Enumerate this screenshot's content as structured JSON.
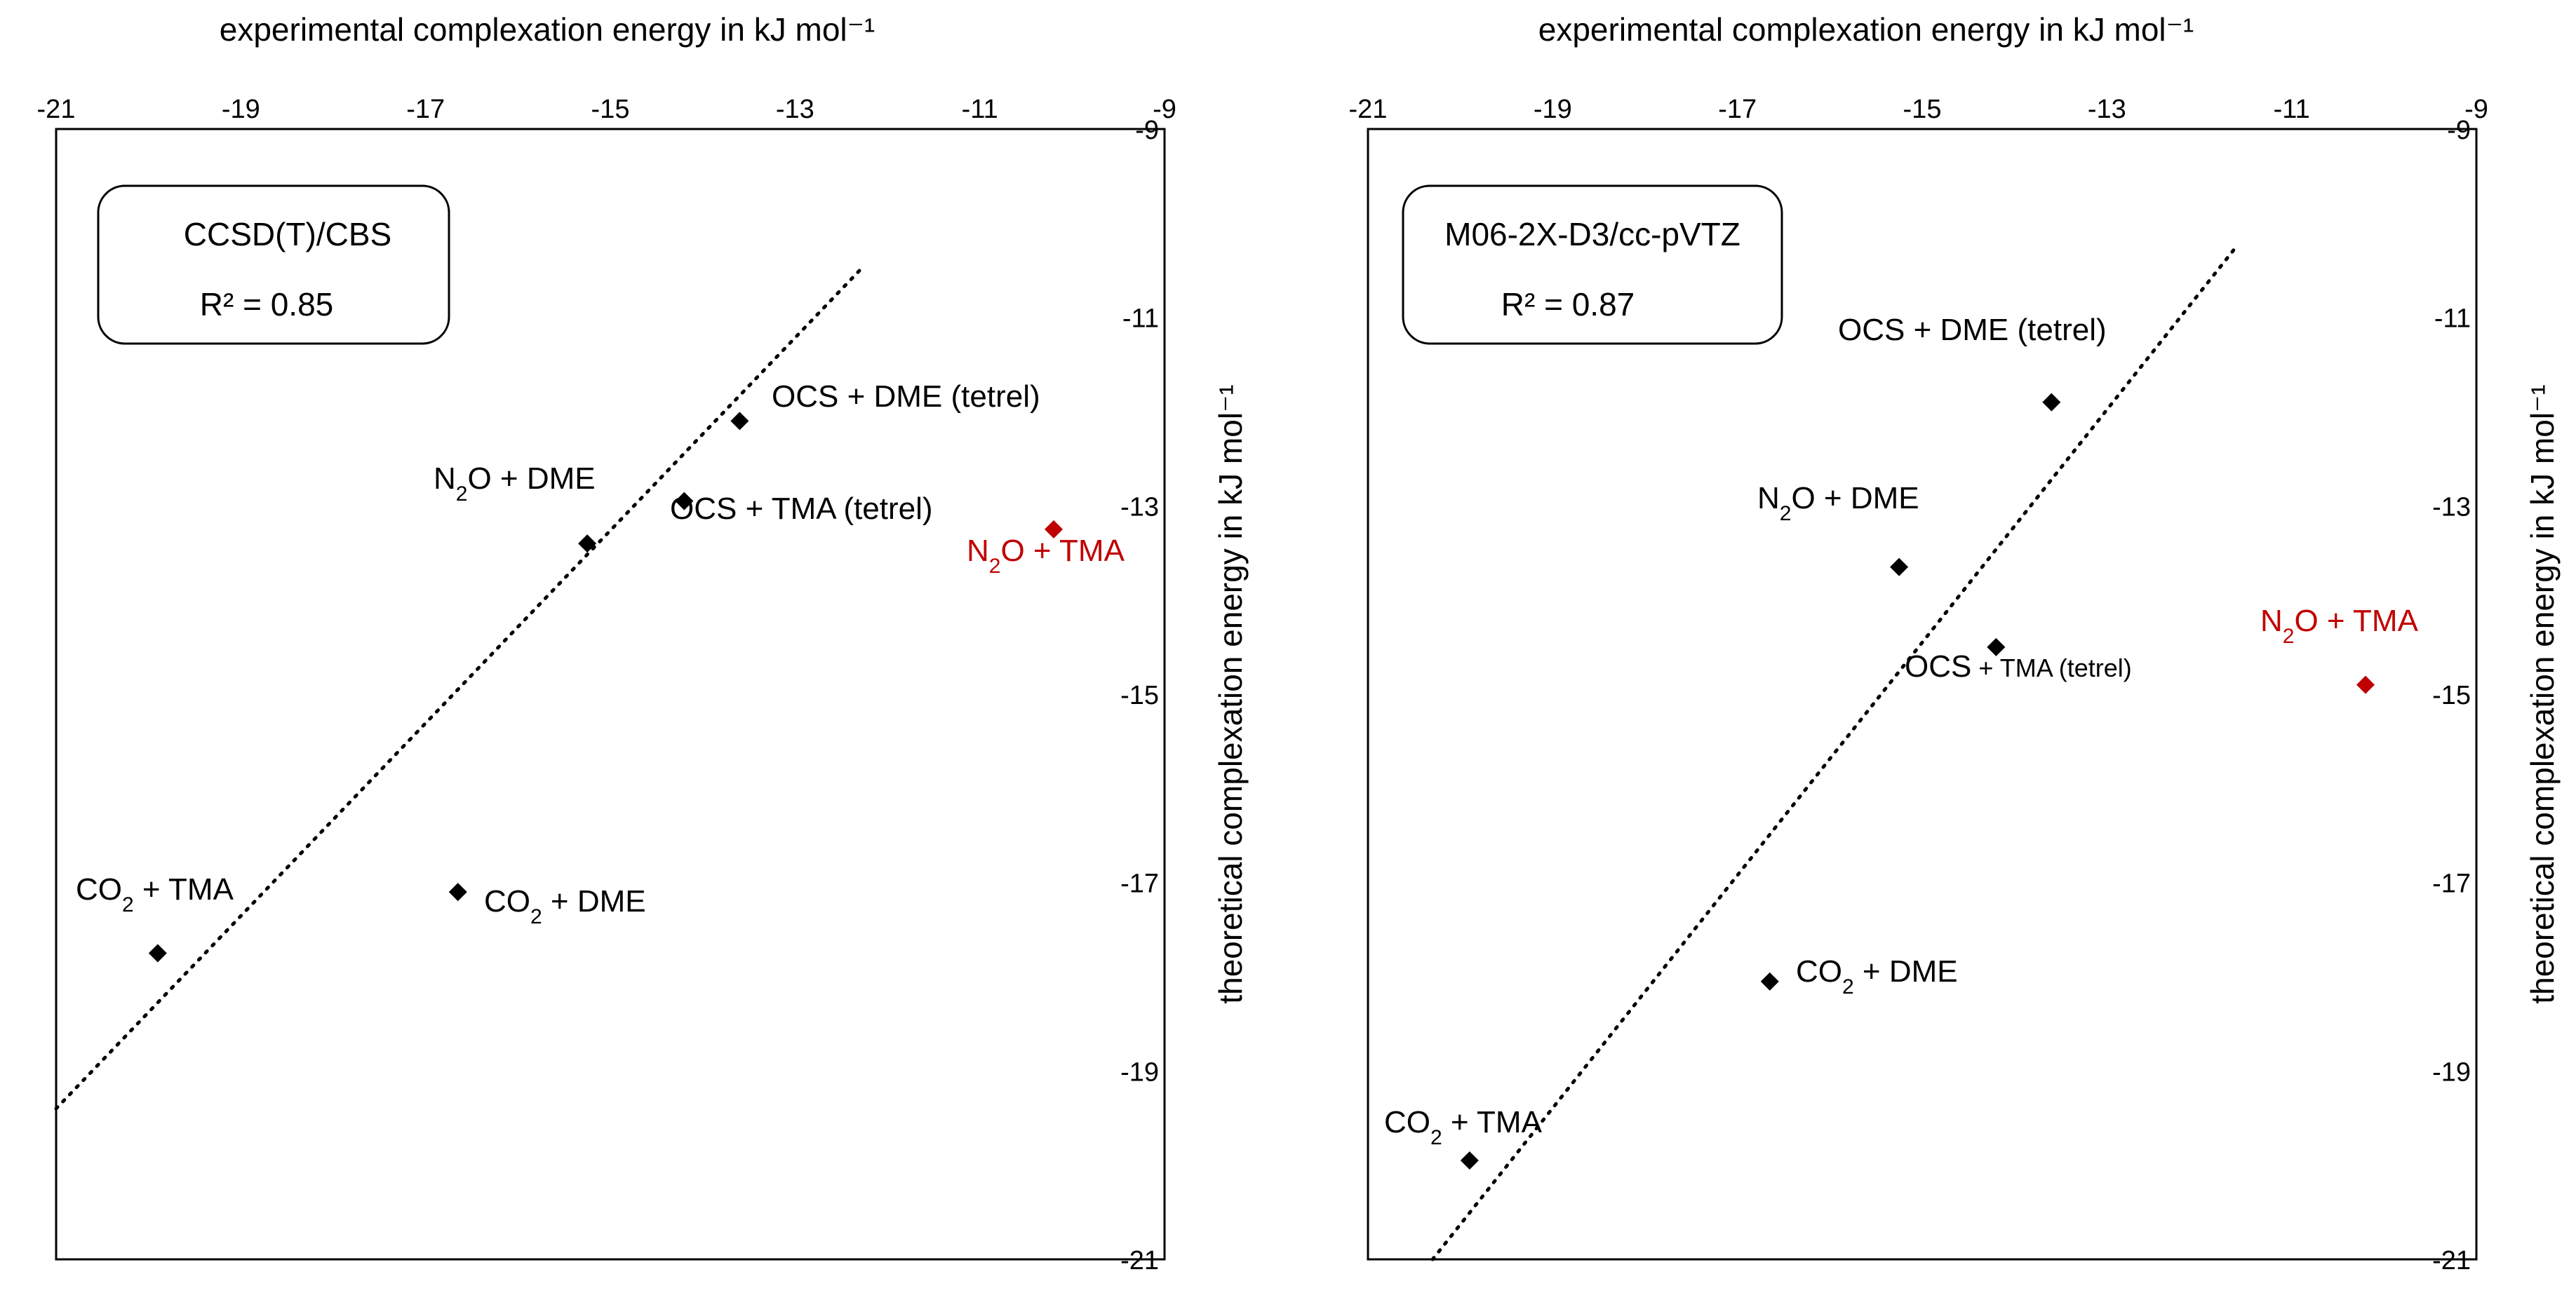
{
  "chart_data": [
    {
      "type": "scatter",
      "method": "CCSD(T)/CBS",
      "r2": "R² = 0.85",
      "xlabel": "experimental complexation energy in kJ mol⁻¹",
      "ylabel": "theoretical complexation energy in kJ mol⁻¹",
      "xlim": [
        -21,
        -9
      ],
      "ylim": [
        -21,
        -9
      ],
      "xticks": [
        "-21",
        "-19",
        "-17",
        "-15",
        "-13",
        "-11",
        "-9"
      ],
      "yticks": [
        "-9",
        "-11",
        "-13",
        "-15",
        "-17",
        "-19",
        "-21"
      ],
      "x_axis_position": "top",
      "y_axis_position": "right",
      "trendline": {
        "style": "dotted",
        "x": [
          -21.0,
          -12.3
        ],
        "y": [
          -19.4,
          -10.5
        ]
      },
      "points": [
        {
          "base": "OCS + DME (tetrel)",
          "sub": "",
          "suffix": "",
          "x": -13.6,
          "y": -12.1,
          "color": "#000000"
        },
        {
          "base": "OCS + TMA (tetrel)",
          "sub": "",
          "suffix": "",
          "x": -14.2,
          "y": -12.95,
          "color": "#000000"
        },
        {
          "base": "N",
          "sub": "2",
          "suffix": "O + DME",
          "x": -15.25,
          "y": -13.4,
          "color": "#000000"
        },
        {
          "base": "N",
          "sub": "2",
          "suffix": "O + TMA",
          "x": -10.2,
          "y": -13.25,
          "color": "#c00000"
        },
        {
          "base": "CO",
          "sub": "2",
          "suffix": " + DME",
          "x": -16.65,
          "y": -17.1,
          "color": "#000000"
        },
        {
          "base": "CO",
          "sub": "2",
          "suffix": " + TMA",
          "x": -19.9,
          "y": -17.75,
          "color": "#000000"
        }
      ]
    },
    {
      "type": "scatter",
      "method": "M06-2X-D3/cc-pVTZ",
      "r2": "R² = 0.87",
      "xlabel": "experimental complexation energy in kJ mol⁻¹",
      "ylabel": "theoretical complexation energy in kJ mol⁻¹",
      "xlim": [
        -21,
        -9
      ],
      "ylim": [
        -21,
        -9
      ],
      "xticks": [
        "-21",
        "-19",
        "-17",
        "-15",
        "-13",
        "-11",
        "-9"
      ],
      "yticks": [
        "-9",
        "-11",
        "-13",
        "-15",
        "-17",
        "-19",
        "-21"
      ],
      "x_axis_position": "top",
      "y_axis_position": "right",
      "trendline": {
        "style": "dotted",
        "x": [
          -20.3,
          -11.6
        ],
        "y": [
          -21.0,
          -10.25
        ]
      },
      "points": [
        {
          "base": "OCS + DME (tetrel)",
          "sub": "",
          "suffix": "",
          "x": -13.6,
          "y": -11.9,
          "color": "#000000"
        },
        {
          "base": "N",
          "sub": "2",
          "suffix": "O + DME",
          "x": -15.25,
          "y": -13.65,
          "color": "#000000"
        },
        {
          "base": "OCS",
          "sub": "",
          "suffix": " + TMA (tetrel)",
          "x": -14.2,
          "y": -14.5,
          "color": "#000000"
        },
        {
          "base": "N",
          "sub": "2",
          "suffix": "O + TMA",
          "x": -10.2,
          "y": -14.9,
          "color": "#c00000"
        },
        {
          "base": "CO",
          "sub": "2",
          "suffix": " + DME",
          "x": -16.65,
          "y": -18.05,
          "color": "#000000"
        },
        {
          "base": "CO",
          "sub": "2",
          "suffix": " + TMA",
          "x": -19.9,
          "y": -19.95,
          "color": "#000000"
        }
      ]
    }
  ]
}
